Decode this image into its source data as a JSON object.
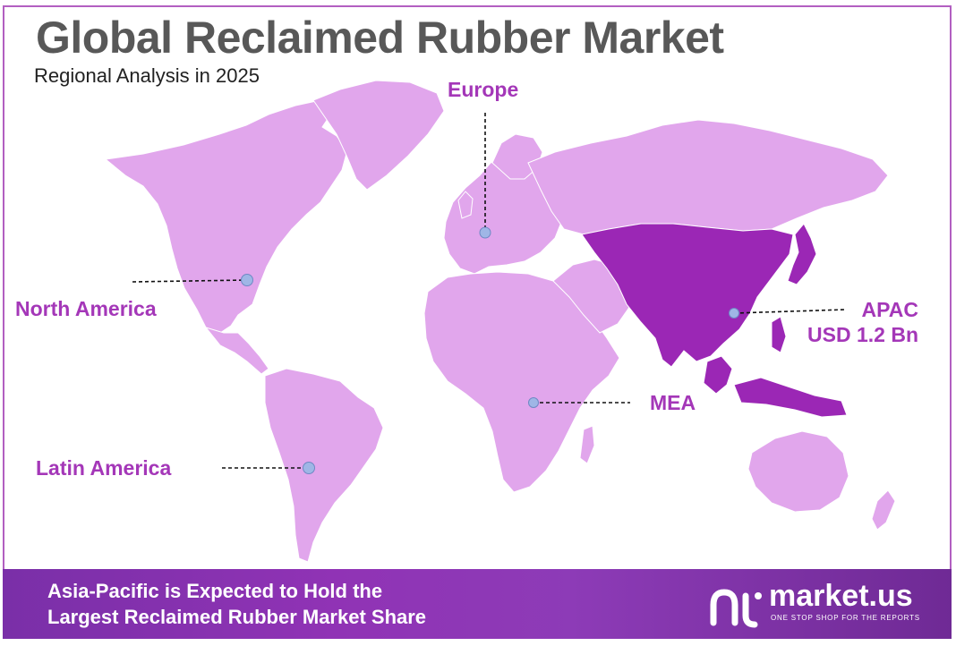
{
  "header": {
    "title": "Global Reclaimed Rubber Market",
    "subtitle": "Regional Analysis in 2025"
  },
  "regions": [
    {
      "id": "europe",
      "name": "Europe",
      "value": "",
      "highlighted": false
    },
    {
      "id": "north-america",
      "name": "North America",
      "value": "",
      "highlighted": false
    },
    {
      "id": "apac",
      "name": "APAC",
      "value": "USD 1.2 Bn",
      "highlighted": true
    },
    {
      "id": "mea",
      "name": "MEA",
      "value": "",
      "highlighted": false
    },
    {
      "id": "latin-america",
      "name": "Latin America",
      "value": "",
      "highlighted": false
    }
  ],
  "banner": {
    "line1": "Asia-Pacific is Expected to Hold the",
    "line2": "Largest Reclaimed Rubber Market Share"
  },
  "logo": {
    "name": "market.us",
    "tagline": "ONE STOP SHOP FOR THE REPORTS"
  },
  "colors": {
    "land": "#e1a6ec",
    "highlight": "#9b27b5",
    "label": "#a437b8",
    "marker": "#9fb6e6",
    "banner": "#8a33b3",
    "title": "#585858"
  }
}
